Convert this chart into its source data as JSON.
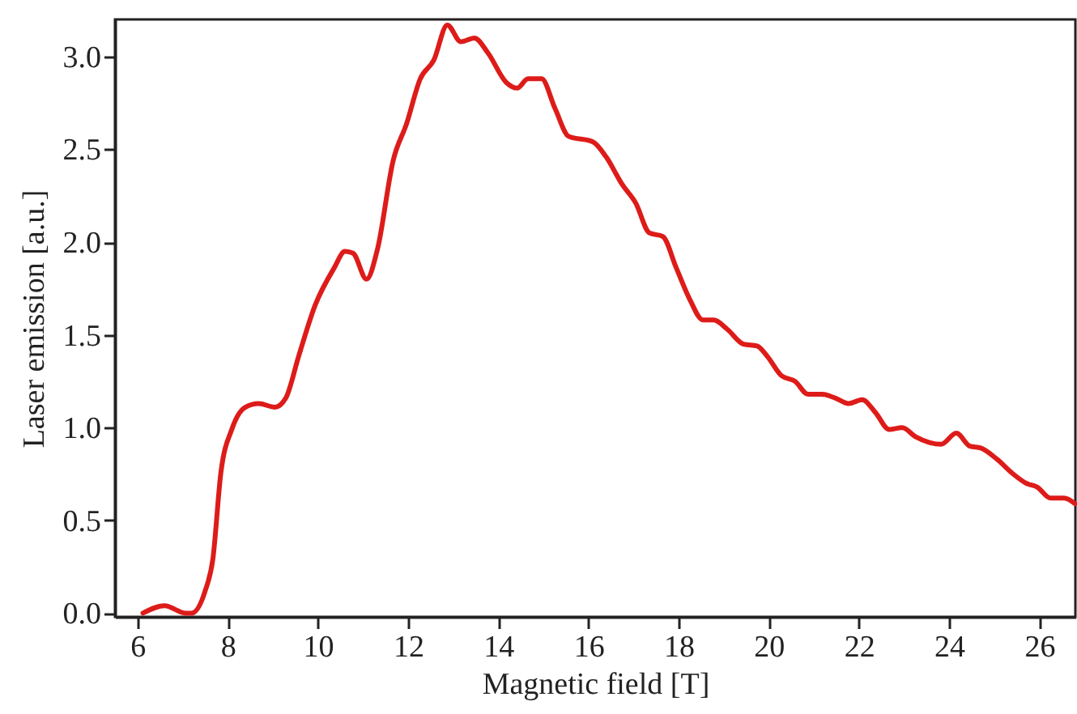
{
  "chart_data": {
    "type": "line",
    "xlabel": "Magnetic field [T]",
    "ylabel": "Laser emission [a.u.]",
    "xlim": [
      5.5,
      26.8
    ],
    "xticks": [
      6,
      8,
      10,
      12,
      14,
      16,
      18,
      20,
      22,
      24,
      26
    ],
    "ylim": [
      -0.02,
      3.2
    ],
    "yticks": [
      {
        "value": 0,
        "label": "0.0"
      },
      0.5,
      {
        "value": 1,
        "label": "1.0"
      },
      1.5,
      {
        "value": 2,
        "label": "2.0"
      },
      2.5,
      {
        "value": 3,
        "label": "3.0"
      }
    ],
    "grid": false,
    "marker": "none",
    "line_style": "solid",
    "series": [
      {
        "color": "#dd1c1a",
        "x": [
          6.12,
          6.6,
          7.07,
          7.2,
          7.5,
          7.67,
          7.85,
          8.09,
          8.39,
          8.69,
          9.05,
          9.29,
          9.58,
          9.94,
          10.36,
          10.6,
          10.78,
          11.08,
          11.32,
          11.67,
          11.97,
          12.27,
          12.57,
          12.87,
          13.17,
          13.47,
          13.77,
          14.18,
          14.42,
          14.66,
          14.96,
          15.26,
          15.56,
          16.1,
          16.39,
          16.75,
          17.05,
          17.35,
          17.65,
          17.95,
          18.25,
          18.54,
          18.78,
          19.08,
          19.44,
          19.74,
          19.98,
          20.28,
          20.58,
          20.87,
          21.17,
          21.47,
          21.77,
          22.07,
          22.37,
          22.67,
          22.96,
          23.26,
          23.56,
          23.82,
          24.16,
          24.46,
          24.7,
          25.06,
          25.42,
          25.71,
          25.95,
          26.25,
          26.55,
          26.79
        ],
        "values": [
          0.0,
          0.04,
          0.0,
          0.0,
          0.12,
          0.29,
          0.76,
          0.99,
          1.11,
          1.13,
          1.11,
          1.16,
          1.39,
          1.66,
          1.86,
          1.95,
          1.94,
          1.8,
          1.96,
          2.44,
          2.64,
          2.88,
          2.98,
          3.17,
          3.08,
          3.1,
          3.02,
          2.86,
          2.83,
          2.88,
          2.88,
          2.72,
          2.57,
          2.54,
          2.46,
          2.31,
          2.21,
          2.05,
          2.03,
          1.86,
          1.69,
          1.58,
          1.58,
          1.53,
          1.45,
          1.44,
          1.38,
          1.28,
          1.25,
          1.18,
          1.18,
          1.16,
          1.13,
          1.15,
          1.08,
          0.99,
          1.0,
          0.95,
          0.92,
          0.91,
          0.97,
          0.9,
          0.89,
          0.83,
          0.75,
          0.7,
          0.68,
          0.62,
          0.62,
          0.59
        ]
      }
    ]
  }
}
